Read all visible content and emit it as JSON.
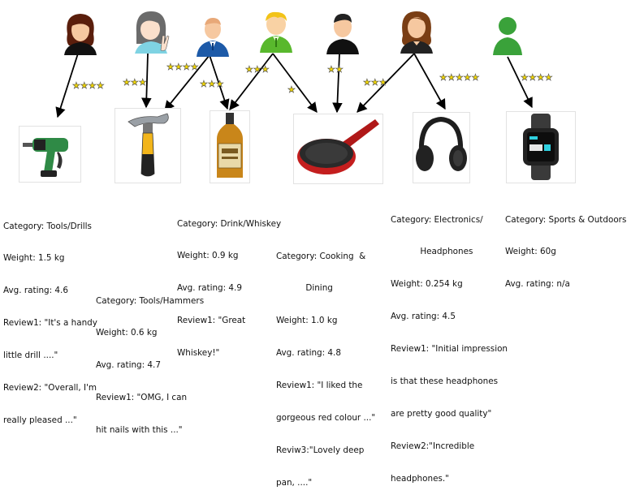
{
  "users": [
    {
      "id": "u1",
      "icon": "woman-dark-hair-icon"
    },
    {
      "id": "u2",
      "icon": "girl-peace-sign-icon"
    },
    {
      "id": "u3",
      "icon": "man-blue-suit-icon"
    },
    {
      "id": "u4",
      "icon": "boy-green-shirt-icon"
    },
    {
      "id": "u5",
      "icon": "man-black-shirt-icon"
    },
    {
      "id": "u6",
      "icon": "woman-brown-hair-icon"
    },
    {
      "id": "u7",
      "icon": "person-green-icon"
    }
  ],
  "products": [
    {
      "id": "drill",
      "icon": "power-drill-icon"
    },
    {
      "id": "hammer",
      "icon": "hammer-icon"
    },
    {
      "id": "whiskey",
      "icon": "whiskey-bottle-icon"
    },
    {
      "id": "pan",
      "icon": "frying-pan-icon"
    },
    {
      "id": "headphones",
      "icon": "headphones-icon"
    },
    {
      "id": "watch",
      "icon": "smartwatch-icon"
    }
  ],
  "ratings": [
    {
      "from": "u1",
      "to": "drill",
      "stars": 4
    },
    {
      "from": "u2",
      "to": "hammer",
      "stars": 3
    },
    {
      "from": "u3",
      "to": "hammer",
      "stars": 4
    },
    {
      "from": "u3",
      "to": "whiskey",
      "stars": 3
    },
    {
      "from": "u4",
      "to": "whiskey",
      "stars": 3
    },
    {
      "from": "u4",
      "to": "pan",
      "stars": 1
    },
    {
      "from": "u5",
      "to": "pan",
      "stars": 2
    },
    {
      "from": "u6",
      "to": "pan",
      "stars": 3
    },
    {
      "from": "u6",
      "to": "headphones",
      "stars": 5
    },
    {
      "from": "u7",
      "to": "watch",
      "stars": 4
    }
  ],
  "info": {
    "drill": [
      "Category: Tools/Drills",
      "Weight: 1.5 kg",
      "Avg. rating: 4.6",
      "Review1: \"It's a handy",
      "little drill ....\"",
      "Review2: \"Overall, I'm",
      "really pleased ...\""
    ],
    "hammer": [
      "Category: Tools/Hammers",
      "Weight: 0.6 kg",
      "Avg. rating: 4.7",
      "Review1: \"OMG, I can",
      "hit nails with this ...\""
    ],
    "whiskey": [
      "Category: Drink/Whiskey",
      "Weight: 0.9 kg",
      "Avg. rating: 4.9",
      "Review1: \"Great",
      "Whiskey!\""
    ],
    "pan": [
      "Category: Cooking  &",
      "           Dining",
      "Weight: 1.0 kg",
      "Avg. rating: 4.8",
      "Review1: \"I liked the",
      "gorgeous red colour ...\"",
      "Reviw3:\"Lovely deep",
      "pan, ....\""
    ],
    "headphones": [
      "Category: Electronics/",
      "           Headphones",
      "Weight: 0.254 kg",
      "Avg. rating: 4.5",
      "Review1: \"Initial impression",
      "is that these headphones",
      "are pretty good quality\"",
      "Review2:\"Incredible",
      "headphones.\""
    ],
    "watch": [
      "Category: Sports & Outdoors",
      "Weight: 60g",
      "Avg. rating: n/a"
    ]
  },
  "colors": {
    "star": "#f2d600",
    "arrow": "#000000"
  }
}
